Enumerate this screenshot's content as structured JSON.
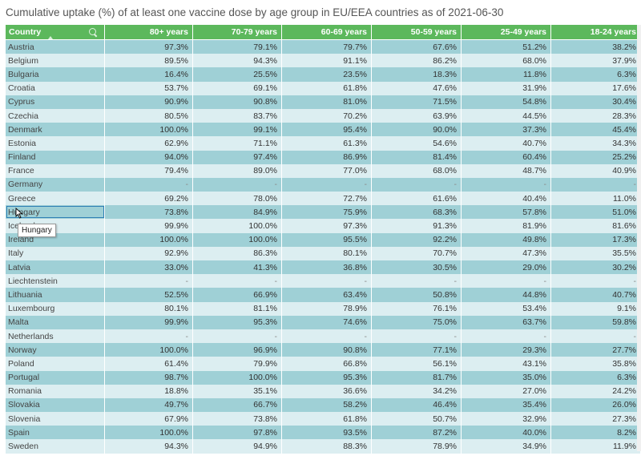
{
  "title": "Cumulative uptake (%) of at least one vaccine dose by age group in EU/EEA countries as of 2021-06-30",
  "columns": [
    "Country",
    "80+ years",
    "70-79 years",
    "60-69 years",
    "50-59 years",
    "25-49 years",
    "18-24 years"
  ],
  "rows": [
    [
      "Austria",
      "97.3%",
      "79.1%",
      "79.7%",
      "67.6%",
      "51.2%",
      "38.2%"
    ],
    [
      "Belgium",
      "89.5%",
      "94.3%",
      "91.1%",
      "86.2%",
      "68.0%",
      "37.9%"
    ],
    [
      "Bulgaria",
      "16.4%",
      "25.5%",
      "23.5%",
      "18.3%",
      "11.8%",
      "6.3%"
    ],
    [
      "Croatia",
      "53.7%",
      "69.1%",
      "61.8%",
      "47.6%",
      "31.9%",
      "17.6%"
    ],
    [
      "Cyprus",
      "90.9%",
      "90.8%",
      "81.0%",
      "71.5%",
      "54.8%",
      "30.4%"
    ],
    [
      "Czechia",
      "80.5%",
      "83.7%",
      "70.2%",
      "63.9%",
      "44.5%",
      "28.3%"
    ],
    [
      "Denmark",
      "100.0%",
      "99.1%",
      "95.4%",
      "90.0%",
      "37.3%",
      "45.4%"
    ],
    [
      "Estonia",
      "62.9%",
      "71.1%",
      "61.3%",
      "54.6%",
      "40.7%",
      "34.3%"
    ],
    [
      "Finland",
      "94.0%",
      "97.4%",
      "86.9%",
      "81.4%",
      "60.4%",
      "25.2%"
    ],
    [
      "France",
      "79.4%",
      "89.0%",
      "77.0%",
      "68.0%",
      "48.7%",
      "40.9%"
    ],
    [
      "Germany",
      "-",
      "-",
      "-",
      "-",
      "-",
      "-"
    ],
    [
      "Greece",
      "69.2%",
      "78.0%",
      "72.7%",
      "61.6%",
      "40.4%",
      "11.0%"
    ],
    [
      "Hungary",
      "73.8%",
      "84.9%",
      "75.9%",
      "68.3%",
      "57.8%",
      "51.0%"
    ],
    [
      "Iceland",
      "99.9%",
      "100.0%",
      "97.3%",
      "91.3%",
      "81.9%",
      "81.6%"
    ],
    [
      "Ireland",
      "100.0%",
      "100.0%",
      "95.5%",
      "92.2%",
      "49.8%",
      "17.3%"
    ],
    [
      "Italy",
      "92.9%",
      "86.3%",
      "80.1%",
      "70.7%",
      "47.3%",
      "35.5%"
    ],
    [
      "Latvia",
      "33.0%",
      "41.3%",
      "36.8%",
      "30.5%",
      "29.0%",
      "30.2%"
    ],
    [
      "Liechtenstein",
      "-",
      "-",
      "-",
      "-",
      "-",
      "-"
    ],
    [
      "Lithuania",
      "52.5%",
      "66.9%",
      "63.4%",
      "50.8%",
      "44.8%",
      "40.7%"
    ],
    [
      "Luxembourg",
      "80.1%",
      "81.1%",
      "78.9%",
      "76.1%",
      "53.4%",
      "9.1%"
    ],
    [
      "Malta",
      "99.9%",
      "95.3%",
      "74.6%",
      "75.0%",
      "63.7%",
      "59.8%"
    ],
    [
      "Netherlands",
      "-",
      "-",
      "-",
      "-",
      "-",
      "-"
    ],
    [
      "Norway",
      "100.0%",
      "96.9%",
      "90.8%",
      "77.1%",
      "29.3%",
      "27.7%"
    ],
    [
      "Poland",
      "61.4%",
      "79.9%",
      "66.8%",
      "56.1%",
      "43.1%",
      "35.8%"
    ],
    [
      "Portugal",
      "98.7%",
      "100.0%",
      "95.3%",
      "81.7%",
      "35.0%",
      "6.3%"
    ],
    [
      "Romania",
      "18.8%",
      "35.1%",
      "36.6%",
      "34.2%",
      "27.0%",
      "24.2%"
    ],
    [
      "Slovakia",
      "49.7%",
      "66.7%",
      "58.2%",
      "46.4%",
      "35.4%",
      "26.0%"
    ],
    [
      "Slovenia",
      "67.9%",
      "73.8%",
      "61.8%",
      "50.7%",
      "32.9%",
      "27.3%"
    ],
    [
      "Spain",
      "100.0%",
      "97.8%",
      "93.5%",
      "87.2%",
      "40.0%",
      "8.2%"
    ],
    [
      "Sweden",
      "94.3%",
      "94.9%",
      "88.3%",
      "78.9%",
      "34.9%",
      "11.9%"
    ]
  ],
  "selected_row": "Hungary",
  "tooltip": "Hungary",
  "icons": {
    "search": "search-icon",
    "sort": "sort-ascending-icon"
  },
  "colors": {
    "header": "#5cb85c",
    "row_odd": "#9fd0d6",
    "row_even": "#dceef1",
    "selection": "#2f7fb5"
  }
}
